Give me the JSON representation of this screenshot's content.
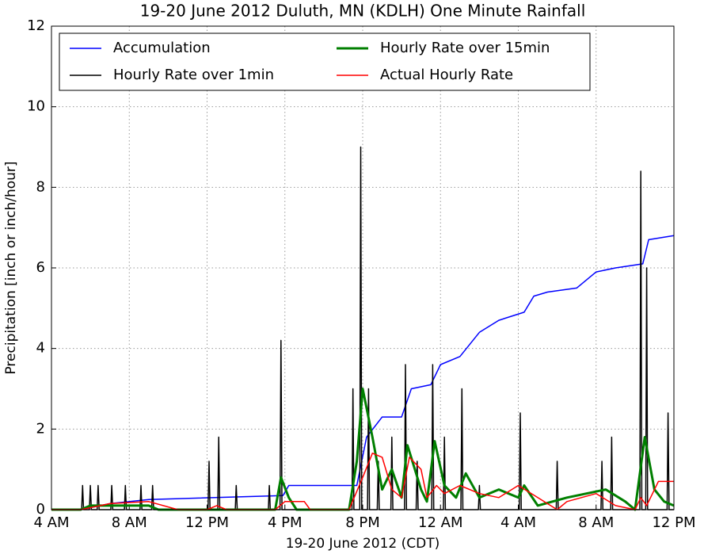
{
  "chart_data": {
    "type": "line",
    "title": "19-20 June 2012 Duluth, MN (KDLH) One Minute Rainfall",
    "x_label": "19-20 June 2012 (CDT)",
    "y_label": "Precipitation [inch or inch/hour]",
    "xlim": [
      0,
      32
    ],
    "ylim": [
      0,
      12
    ],
    "xticks": [
      {
        "value": 0,
        "label": "4 AM"
      },
      {
        "value": 4,
        "label": "8 AM"
      },
      {
        "value": 8,
        "label": "12 PM"
      },
      {
        "value": 12,
        "label": "4 PM"
      },
      {
        "value": 16,
        "label": "8 PM"
      },
      {
        "value": 20,
        "label": "12 AM"
      },
      {
        "value": 24,
        "label": "4 AM"
      },
      {
        "value": 28,
        "label": "8 AM"
      },
      {
        "value": 32,
        "label": "12 PM"
      }
    ],
    "yticks": [
      0,
      2,
      4,
      6,
      8,
      10,
      12
    ],
    "grid": true,
    "legend": "top",
    "series": [
      {
        "name": "Accumulation",
        "color": "#0000ff",
        "width": 1.5,
        "x": [
          0,
          1.5,
          3,
          5,
          11.9,
          12.2,
          15.7,
          16.2,
          17,
          18,
          18.5,
          19.5,
          20,
          21,
          22,
          23,
          24.3,
          24.8,
          25.5,
          27,
          28,
          29,
          30.4,
          30.7,
          32
        ],
        "values": [
          0,
          0,
          0.15,
          0.25,
          0.35,
          0.6,
          0.6,
          1.8,
          2.3,
          2.3,
          3.0,
          3.1,
          3.6,
          3.8,
          4.4,
          4.7,
          4.9,
          5.3,
          5.4,
          5.5,
          5.9,
          6.0,
          6.1,
          6.7,
          6.8
        ]
      },
      {
        "name": "Hourly Rate over 1min",
        "color": "#000000",
        "width": 1.5,
        "x": [
          0,
          1.55,
          1.6,
          1.65,
          1.95,
          2.0,
          2.05,
          2.35,
          2.4,
          2.45,
          3.05,
          3.1,
          3.15,
          3.75,
          3.8,
          3.85,
          4.55,
          4.6,
          4.65,
          5.15,
          5.2,
          5.25,
          8.05,
          8.1,
          8.15,
          8.55,
          8.6,
          8.65,
          9.45,
          9.5,
          9.55,
          11.15,
          11.2,
          11.25,
          11.75,
          11.8,
          11.85,
          15.45,
          15.5,
          15.55,
          15.85,
          15.9,
          15.95,
          16.25,
          16.3,
          16.35,
          16.75,
          16.8,
          16.85,
          17.45,
          17.5,
          17.55,
          18.15,
          18.2,
          18.25,
          18.75,
          18.8,
          18.85,
          19.55,
          19.6,
          19.65,
          20.15,
          20.2,
          20.25,
          21.05,
          21.1,
          21.15,
          21.95,
          22.0,
          22.05,
          24.05,
          24.1,
          24.15,
          25.95,
          26.0,
          26.05,
          28.25,
          28.3,
          28.35,
          28.75,
          28.8,
          28.85,
          30.25,
          30.3,
          30.35,
          30.55,
          30.6,
          30.65,
          31.65,
          31.7,
          31.75,
          32
        ],
        "values": [
          0,
          0,
          0.6,
          0,
          0,
          0.6,
          0,
          0,
          0.6,
          0,
          0,
          0.6,
          0,
          0,
          0.6,
          0,
          0,
          0.6,
          0,
          0,
          0.6,
          0,
          0,
          1.2,
          0,
          0,
          1.8,
          0,
          0,
          0.6,
          0,
          0,
          0.6,
          0,
          0,
          4.2,
          0,
          0,
          3.0,
          0,
          0,
          9.0,
          0,
          0,
          3.0,
          0,
          0,
          1.2,
          0,
          0,
          1.8,
          0,
          0,
          3.6,
          0,
          0,
          1.2,
          0,
          0,
          3.6,
          0,
          0,
          1.8,
          0,
          0,
          3.0,
          0,
          0,
          0.6,
          0,
          0,
          2.4,
          0,
          0,
          1.2,
          0,
          0,
          1.2,
          0,
          0,
          1.8,
          0,
          0,
          8.4,
          0,
          0,
          6.0,
          0,
          0,
          2.4,
          0,
          0
        ]
      },
      {
        "name": "Hourly Rate over 15min",
        "color": "#007f00",
        "width": 3,
        "x": [
          0,
          1.5,
          2,
          5,
          5.5,
          11.5,
          11.8,
          12.2,
          12.6,
          15.3,
          15.7,
          16.0,
          16.5,
          17,
          17.5,
          18,
          18.3,
          19,
          19.3,
          19.7,
          20.2,
          20.8,
          21.3,
          22,
          23,
          24,
          24.3,
          25,
          26.5,
          28.5,
          29.5,
          30,
          30.5,
          31,
          31.5,
          32
        ],
        "values": [
          0,
          0,
          0.1,
          0.1,
          0,
          0,
          0.8,
          0.3,
          0,
          0,
          1.2,
          3.0,
          1.8,
          0.5,
          1.0,
          0.3,
          1.6,
          0.5,
          0.2,
          1.7,
          0.6,
          0.3,
          0.9,
          0.3,
          0.5,
          0.3,
          0.6,
          0.1,
          0.3,
          0.5,
          0.2,
          0,
          1.8,
          0.5,
          0.2,
          0.1
        ]
      },
      {
        "name": "Actual Hourly Rate",
        "color": "#ff0000",
        "width": 1.5,
        "x": [
          0,
          1.5,
          3,
          5,
          6.5,
          8,
          8.5,
          9,
          11.5,
          12,
          13,
          13.3,
          15.3,
          16,
          16.5,
          17,
          17.5,
          18,
          18.4,
          19,
          19.3,
          19.8,
          20.2,
          21,
          22,
          23,
          24,
          25,
          26,
          26.5,
          28,
          29,
          30,
          30.3,
          30.6,
          31.2,
          32
        ],
        "values": [
          0,
          0,
          0.15,
          0.2,
          0,
          0,
          0.1,
          0,
          0,
          0.2,
          0.2,
          0,
          0,
          0.8,
          1.4,
          1.3,
          0.5,
          0.3,
          1.3,
          1.0,
          0.3,
          0.6,
          0.4,
          0.6,
          0.4,
          0.3,
          0.6,
          0.3,
          0,
          0.2,
          0.4,
          0.1,
          0,
          0.3,
          0.1,
          0.7,
          0.7
        ]
      }
    ]
  }
}
